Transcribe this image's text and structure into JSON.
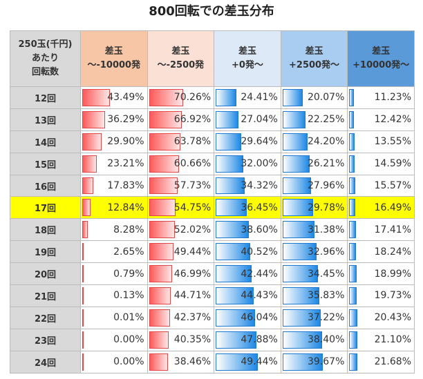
{
  "title": "800回転での差玉分布",
  "table": {
    "header": [
      [
        "250玉(千円)",
        "あたり",
        "回転数"
      ],
      [
        "差玉",
        "～-10000発"
      ],
      [
        "差玉",
        "～-2500発"
      ],
      [
        "差玉",
        "+0発～"
      ],
      [
        "差玉",
        "+2500発～"
      ],
      [
        "差玉",
        "+10000発～"
      ]
    ],
    "rows": [
      {
        "label": "12回",
        "values": [
          43.49,
          70.26,
          24.41,
          20.07,
          11.23
        ],
        "value_labels": [
          "43.49%",
          "70.26%",
          "24.41%",
          "20.07%",
          "11.23%"
        ]
      },
      {
        "label": "13回",
        "values": [
          36.29,
          66.92,
          27.04,
          22.25,
          12.42
        ],
        "value_labels": [
          "36.29%",
          "66.92%",
          "27.04%",
          "22.25%",
          "12.42%"
        ]
      },
      {
        "label": "14回",
        "values": [
          29.9,
          63.78,
          29.64,
          24.2,
          13.55
        ],
        "value_labels": [
          "29.90%",
          "63.78%",
          "29.64%",
          "24.20%",
          "13.55%"
        ]
      },
      {
        "label": "15回",
        "values": [
          23.21,
          60.66,
          32,
          26.21,
          14.59
        ],
        "value_labels": [
          "23.21%",
          "60.66%",
          "32.00%",
          "26.21%",
          "14.59%"
        ]
      },
      {
        "label": "16回",
        "values": [
          17.83,
          57.73,
          34.32,
          27.96,
          15.57
        ],
        "value_labels": [
          "17.83%",
          "57.73%",
          "34.32%",
          "27.96%",
          "15.57%"
        ]
      },
      {
        "label": "17回",
        "values": [
          12.84,
          54.75,
          36.45,
          29.78,
          16.49
        ],
        "value_labels": [
          "12.84%",
          "54.75%",
          "36.45%",
          "29.78%",
          "16.49%"
        ],
        "highlighted": true
      },
      {
        "label": "18回",
        "values": [
          8.28,
          52.02,
          38.6,
          31.38,
          17.41
        ],
        "value_labels": [
          "8.28%",
          "52.02%",
          "38.60%",
          "31.38%",
          "17.41%"
        ]
      },
      {
        "label": "19回",
        "values": [
          2.65,
          49.44,
          40.52,
          32.96,
          18.24
        ],
        "value_labels": [
          "2.65%",
          "49.44%",
          "40.52%",
          "32.96%",
          "18.24%"
        ]
      },
      {
        "label": "20回",
        "values": [
          0.79,
          46.99,
          42.44,
          34.45,
          18.99
        ],
        "value_labels": [
          "0.79%",
          "46.99%",
          "42.44%",
          "34.45%",
          "18.99%"
        ]
      },
      {
        "label": "21回",
        "values": [
          0.13,
          44.71,
          44.43,
          35.83,
          19.73
        ],
        "value_labels": [
          "0.13%",
          "44.71%",
          "44.43%",
          "35.83%",
          "19.73%"
        ]
      },
      {
        "label": "22回",
        "values": [
          0.01,
          42.37,
          46.04,
          37.22,
          20.43
        ],
        "value_labels": [
          "0.01%",
          "42.37%",
          "46.04%",
          "37.22%",
          "20.43%"
        ]
      },
      {
        "label": "23回",
        "values": [
          0,
          40.35,
          47.88,
          38.4,
          21.1
        ],
        "value_labels": [
          "0.00%",
          "40.35%",
          "47.88%",
          "38.40%",
          "21.10%"
        ]
      },
      {
        "label": "24回",
        "values": [
          0,
          38.46,
          49.44,
          39.67,
          21.68
        ],
        "value_labels": [
          "0.00%",
          "38.46%",
          "49.44%",
          "39.67%",
          "21.68%"
        ]
      }
    ]
  }
}
